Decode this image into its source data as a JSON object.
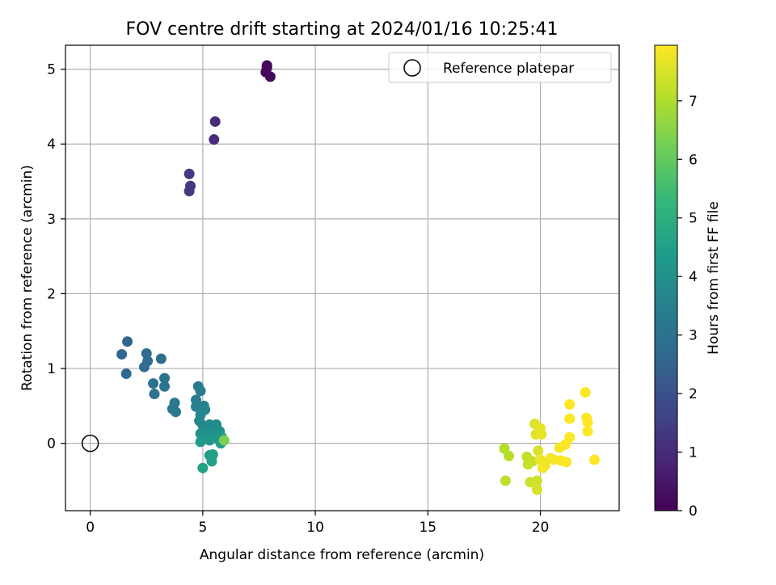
{
  "chart_data": {
    "type": "scatter",
    "title": "FOV centre drift starting at 2024/01/16 10:25:41",
    "xlabel": "Angular distance from reference (arcmin)",
    "ylabel": "Rotation from reference (arcmin)",
    "xlim": [
      -1.1,
      23.5
    ],
    "ylim": [
      -0.9,
      5.32
    ],
    "xticks": [
      0,
      5,
      10,
      15,
      20
    ],
    "yticks": [
      0,
      1,
      2,
      3,
      4,
      5
    ],
    "grid": true,
    "legend": {
      "position": "top-right",
      "label": "Reference platepar"
    },
    "reference_point": {
      "x": 0,
      "y": 0
    },
    "colorbar": {
      "label": "Hours from first FF file",
      "range": [
        0,
        7.95
      ],
      "ticks": [
        0,
        1,
        2,
        3,
        4,
        5,
        6,
        7
      ],
      "colormap": [
        "#440154",
        "#482878",
        "#3e4989",
        "#31688e",
        "#26828e",
        "#1f9e89",
        "#35b779",
        "#6ece58",
        "#b5de2b",
        "#fde725"
      ]
    },
    "points": [
      {
        "x": 7.8,
        "y": 4.96,
        "h": 0.05
      },
      {
        "x": 7.85,
        "y": 5.05,
        "h": 0.1
      },
      {
        "x": 7.85,
        "y": 5.02,
        "h": 0.15
      },
      {
        "x": 8.0,
        "y": 4.9,
        "h": 0.2
      },
      {
        "x": 5.55,
        "y": 4.3,
        "h": 1.0
      },
      {
        "x": 5.5,
        "y": 4.06,
        "h": 1.05
      },
      {
        "x": 4.4,
        "y": 3.6,
        "h": 1.3
      },
      {
        "x": 4.45,
        "y": 3.44,
        "h": 1.35
      },
      {
        "x": 4.4,
        "y": 3.37,
        "h": 1.4
      },
      {
        "x": 1.65,
        "y": 1.36,
        "h": 2.6
      },
      {
        "x": 1.4,
        "y": 1.19,
        "h": 2.65
      },
      {
        "x": 1.6,
        "y": 0.93,
        "h": 2.7
      },
      {
        "x": 2.5,
        "y": 1.2,
        "h": 2.75
      },
      {
        "x": 2.55,
        "y": 1.1,
        "h": 2.8
      },
      {
        "x": 2.4,
        "y": 1.02,
        "h": 2.85
      },
      {
        "x": 3.15,
        "y": 1.13,
        "h": 2.9
      },
      {
        "x": 2.8,
        "y": 0.8,
        "h": 2.95
      },
      {
        "x": 2.85,
        "y": 0.66,
        "h": 3.0
      },
      {
        "x": 3.3,
        "y": 0.87,
        "h": 3.05
      },
      {
        "x": 3.3,
        "y": 0.76,
        "h": 3.1
      },
      {
        "x": 3.75,
        "y": 0.54,
        "h": 3.15
      },
      {
        "x": 3.65,
        "y": 0.46,
        "h": 3.2
      },
      {
        "x": 3.8,
        "y": 0.42,
        "h": 3.25
      },
      {
        "x": 4.8,
        "y": 0.76,
        "h": 3.3
      },
      {
        "x": 4.9,
        "y": 0.7,
        "h": 3.35
      },
      {
        "x": 4.7,
        "y": 0.58,
        "h": 3.4
      },
      {
        "x": 4.7,
        "y": 0.49,
        "h": 3.45
      },
      {
        "x": 5.05,
        "y": 0.5,
        "h": 3.5
      },
      {
        "x": 4.95,
        "y": 0.44,
        "h": 3.55
      },
      {
        "x": 5.1,
        "y": 0.45,
        "h": 3.6
      },
      {
        "x": 4.9,
        "y": 0.38,
        "h": 3.65
      },
      {
        "x": 4.85,
        "y": 0.3,
        "h": 3.7
      },
      {
        "x": 5.0,
        "y": 0.24,
        "h": 3.75
      },
      {
        "x": 5.3,
        "y": 0.25,
        "h": 3.8
      },
      {
        "x": 5.6,
        "y": 0.25,
        "h": 3.85
      },
      {
        "x": 5.15,
        "y": 0.18,
        "h": 3.9
      },
      {
        "x": 5.45,
        "y": 0.16,
        "h": 3.95
      },
      {
        "x": 5.75,
        "y": 0.16,
        "h": 4.0
      },
      {
        "x": 4.9,
        "y": 0.13,
        "h": 4.05
      },
      {
        "x": 5.2,
        "y": 0.1,
        "h": 4.1
      },
      {
        "x": 5.55,
        "y": 0.07,
        "h": 4.15
      },
      {
        "x": 5.85,
        "y": 0.08,
        "h": 4.2
      },
      {
        "x": 5.3,
        "y": 0.04,
        "h": 4.25
      },
      {
        "x": 4.9,
        "y": 0.02,
        "h": 4.3
      },
      {
        "x": 5.8,
        "y": 0.0,
        "h": 4.35
      },
      {
        "x": 5.3,
        "y": -0.16,
        "h": 4.4
      },
      {
        "x": 5.45,
        "y": -0.15,
        "h": 4.45
      },
      {
        "x": 5.4,
        "y": -0.24,
        "h": 4.5
      },
      {
        "x": 5.0,
        "y": -0.33,
        "h": 4.55
      },
      {
        "x": 5.95,
        "y": 0.04,
        "h": 6.3
      },
      {
        "x": 18.4,
        "y": -0.07,
        "h": 7.05
      },
      {
        "x": 18.6,
        "y": -0.17,
        "h": 7.1
      },
      {
        "x": 18.45,
        "y": -0.5,
        "h": 7.15
      },
      {
        "x": 19.4,
        "y": -0.18,
        "h": 7.2
      },
      {
        "x": 19.45,
        "y": -0.28,
        "h": 7.25
      },
      {
        "x": 19.65,
        "y": -0.24,
        "h": 7.3
      },
      {
        "x": 19.55,
        "y": -0.52,
        "h": 7.35
      },
      {
        "x": 19.85,
        "y": -0.5,
        "h": 7.4
      },
      {
        "x": 19.85,
        "y": -0.62,
        "h": 7.45
      },
      {
        "x": 19.9,
        "y": -0.1,
        "h": 7.5
      },
      {
        "x": 19.75,
        "y": 0.26,
        "h": 7.55
      },
      {
        "x": 19.8,
        "y": 0.12,
        "h": 7.6
      },
      {
        "x": 20.0,
        "y": 0.2,
        "h": 7.65
      },
      {
        "x": 20.05,
        "y": 0.12,
        "h": 7.7
      },
      {
        "x": 20.0,
        "y": -0.22,
        "h": 7.75
      },
      {
        "x": 20.1,
        "y": -0.33,
        "h": 7.8
      },
      {
        "x": 20.2,
        "y": -0.3,
        "h": 7.82
      },
      {
        "x": 20.45,
        "y": -0.2,
        "h": 7.84
      },
      {
        "x": 20.6,
        "y": -0.22,
        "h": 7.86
      },
      {
        "x": 20.85,
        "y": -0.06,
        "h": 7.88
      },
      {
        "x": 20.9,
        "y": -0.23,
        "h": 7.9
      },
      {
        "x": 21.15,
        "y": -0.25,
        "h": 7.91
      },
      {
        "x": 21.1,
        "y": -0.02,
        "h": 7.92
      },
      {
        "x": 21.3,
        "y": 0.08,
        "h": 7.93
      },
      {
        "x": 21.3,
        "y": 0.33,
        "h": 7.94
      },
      {
        "x": 21.3,
        "y": 0.52,
        "h": 7.94
      },
      {
        "x": 22.0,
        "y": 0.68,
        "h": 7.95
      },
      {
        "x": 22.05,
        "y": 0.34,
        "h": 7.95
      },
      {
        "x": 22.1,
        "y": 0.28,
        "h": 7.95
      },
      {
        "x": 22.1,
        "y": 0.16,
        "h": 7.95
      },
      {
        "x": 22.4,
        "y": -0.22,
        "h": 7.95
      }
    ]
  }
}
